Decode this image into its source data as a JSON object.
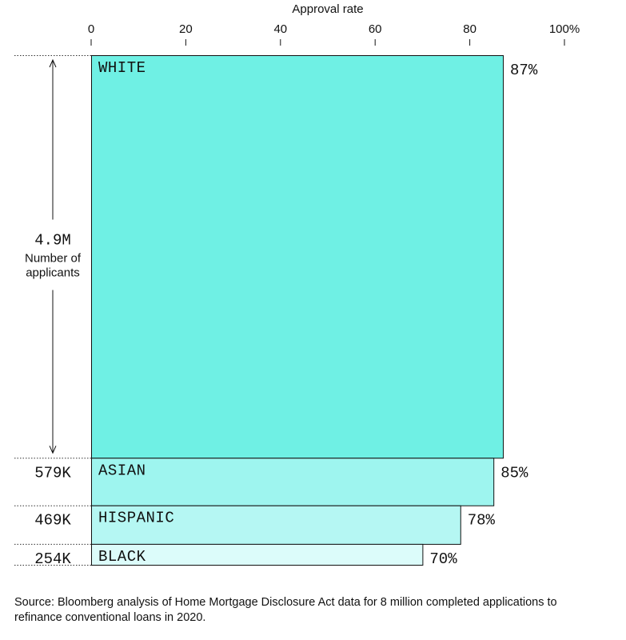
{
  "chart_data": {
    "type": "bar",
    "subtype": "variable-width (mekko) horizontal bar",
    "xlabel": "Approval rate",
    "xlim": [
      0,
      100
    ],
    "x_ticks": [
      "0",
      "20",
      "40",
      "60",
      "80",
      "100%"
    ],
    "x_tick_values": [
      0,
      20,
      40,
      60,
      80,
      100
    ],
    "bar_height_measure": "Number of applicants",
    "categories": [
      "WHITE",
      "ASIAN",
      "HISPANIC",
      "BLACK"
    ],
    "values": [
      87,
      85,
      78,
      70
    ],
    "value_labels": [
      "87%",
      "85%",
      "78%",
      "70%"
    ],
    "applicants": [
      4900000,
      579000,
      469000,
      254000
    ],
    "applicant_labels": [
      "4.9M",
      "579K",
      "469K",
      "254K"
    ],
    "bar_colors": [
      "#6ff0e4",
      "#9ef5ef",
      "#b5f7f3",
      "#dcfcfa"
    ],
    "legend": "none",
    "grid": false
  },
  "annotation": {
    "first_count_caption": "Number of\napplicants"
  },
  "source": "Source: Bloomberg analysis of Home Mortgage Disclosure Act data for 8 million completed applications to refinance conventional loans in 2020."
}
